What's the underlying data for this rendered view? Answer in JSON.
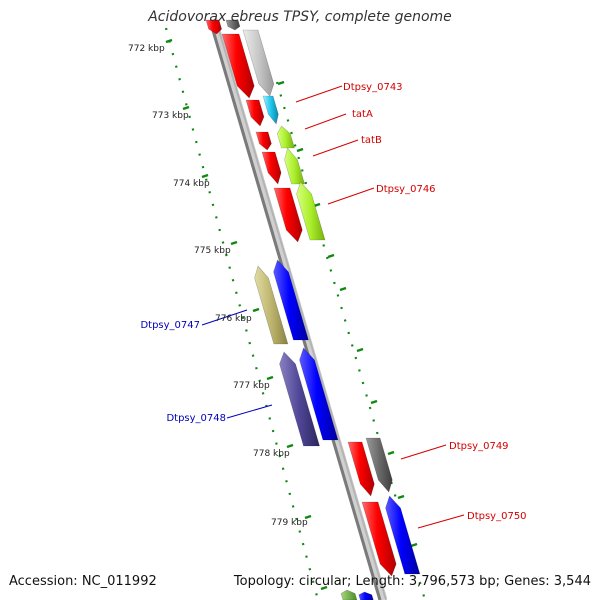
{
  "title": "Acidovorax ebreus TPSY, complete genome",
  "footer": {
    "accession": "Accession: NC_011992",
    "summary": "Topology: circular; Length: 3,796,573 bp; Genes: 3,544"
  },
  "scale": {
    "ticks": [
      "772 kbp",
      "773 kbp",
      "774 kbp",
      "775 kbp",
      "776 kbp",
      "777 kbp",
      "778 kbp",
      "779 kbp"
    ]
  },
  "genes": [
    {
      "label": "Dtpsy_0743",
      "color": "#d40000"
    },
    {
      "label": "tatA",
      "color": "#d40000"
    },
    {
      "label": "tatB",
      "color": "#d40000"
    },
    {
      "label": "Dtpsy_0746",
      "color": "#d40000"
    },
    {
      "label": "Dtpsy_0747",
      "color": "#0000bb"
    },
    {
      "label": "Dtpsy_0748",
      "color": "#0000bb"
    },
    {
      "label": "Dtpsy_0749",
      "color": "#d40000"
    },
    {
      "label": "Dtpsy_0750",
      "color": "#d40000"
    }
  ],
  "colors": {
    "forward_cds": "#ff0000",
    "reverse_cds": "#0000ff",
    "backbone": "#888888",
    "gc_skew": "#118811",
    "label_forward": "#d40000",
    "label_reverse": "#0000bb"
  }
}
